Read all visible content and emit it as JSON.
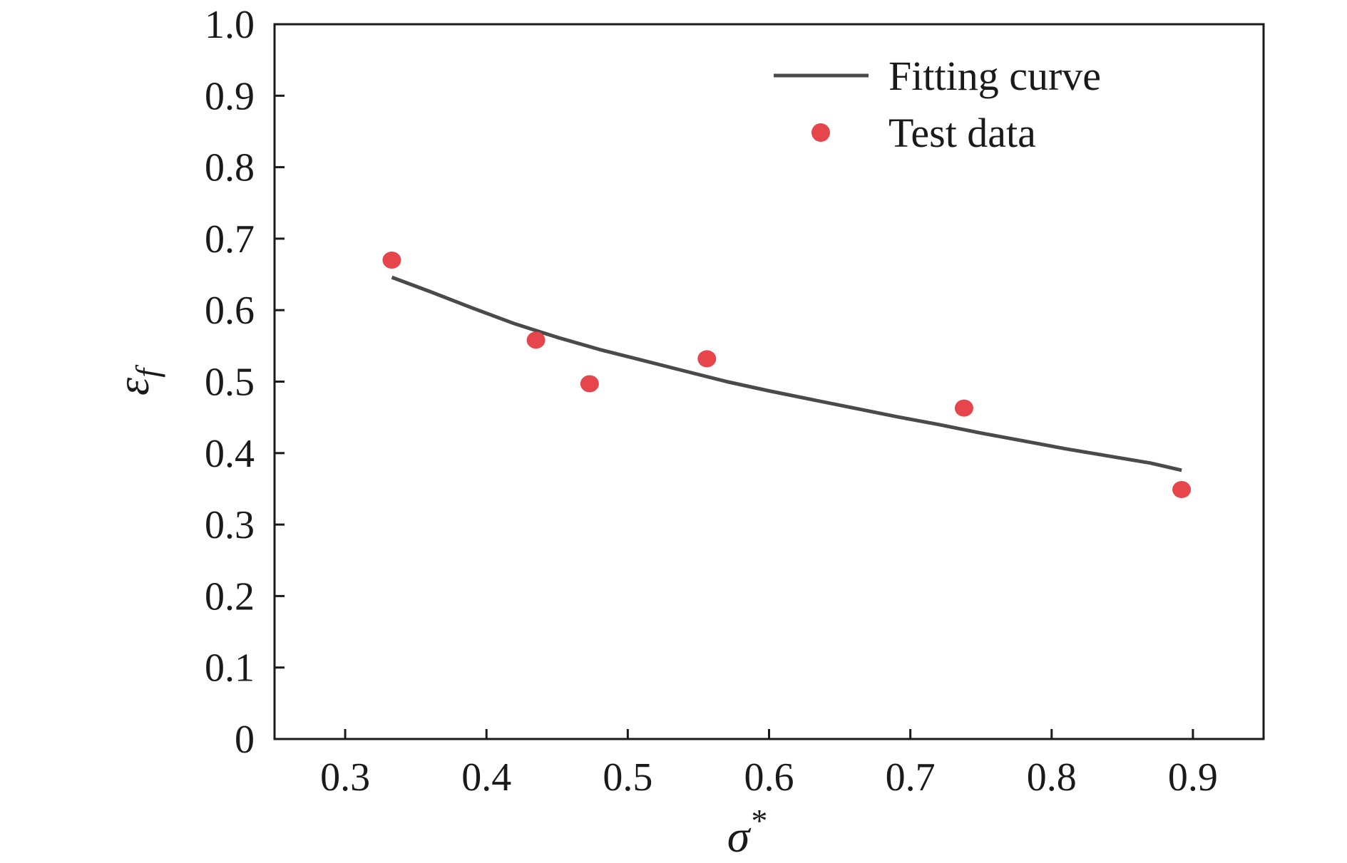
{
  "chart_data": {
    "type": "scatter",
    "title": "",
    "xlabel": {
      "symbol": "σ",
      "superscript": "*"
    },
    "ylabel": {
      "symbol": "ε",
      "subscript": "f"
    },
    "xlim": [
      0.25,
      0.95
    ],
    "ylim": [
      0,
      1.0
    ],
    "xticks": [
      "0.3",
      "0.4",
      "0.5",
      "0.6",
      "0.7",
      "0.8",
      "0.9"
    ],
    "yticks": [
      "0",
      "0.1",
      "0.2",
      "0.3",
      "0.4",
      "0.5",
      "0.6",
      "0.7",
      "0.8",
      "0.9",
      "1.0"
    ],
    "grid": false,
    "legend_position": "top-right",
    "series": [
      {
        "name": "Fitting curve",
        "kind": "line",
        "color": "#4a4a4a",
        "x": [
          0.333,
          0.36,
          0.39,
          0.42,
          0.45,
          0.48,
          0.51,
          0.54,
          0.57,
          0.6,
          0.63,
          0.66,
          0.69,
          0.72,
          0.75,
          0.78,
          0.81,
          0.84,
          0.87,
          0.892
        ],
        "y": [
          0.646,
          0.626,
          0.603,
          0.581,
          0.562,
          0.545,
          0.53,
          0.515,
          0.5,
          0.487,
          0.475,
          0.463,
          0.451,
          0.44,
          0.428,
          0.417,
          0.406,
          0.396,
          0.386,
          0.376
        ]
      },
      {
        "name": "Test data",
        "kind": "scatter",
        "color": "#e5454b",
        "x": [
          0.333,
          0.435,
          0.473,
          0.556,
          0.738,
          0.892
        ],
        "y": [
          0.67,
          0.558,
          0.497,
          0.532,
          0.463,
          0.349
        ]
      }
    ]
  }
}
